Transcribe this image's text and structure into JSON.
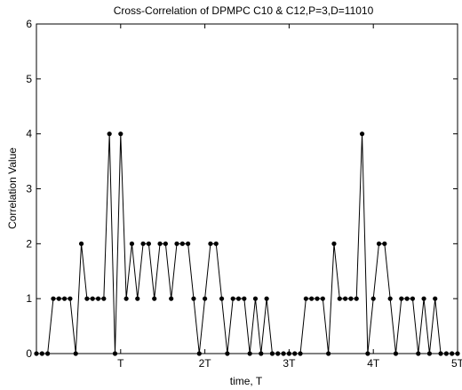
{
  "chart_data": {
    "type": "line",
    "title": "Cross-Correlation of DPMPC C10 & C12,P=3,D=11010",
    "xlabel": "time, T",
    "ylabel": "Correlation Value",
    "xlim": [
      0,
      75
    ],
    "ylim": [
      0,
      6
    ],
    "x_ticks": [
      {
        "value": 15,
        "label": "T"
      },
      {
        "value": 30,
        "label": "2T"
      },
      {
        "value": 45,
        "label": "3T"
      },
      {
        "value": 60,
        "label": "4T"
      },
      {
        "value": 75,
        "label": "5T"
      }
    ],
    "y_ticks": [
      0,
      1,
      2,
      3,
      4,
      5,
      6
    ],
    "grid": false,
    "legend": "none",
    "line_color": "#000000",
    "marker": "filled-circle",
    "series": [
      {
        "values": [
          0,
          0,
          0,
          1,
          1,
          1,
          1,
          0,
          2,
          1,
          1,
          1,
          1,
          4,
          0,
          4,
          1,
          2,
          1,
          2,
          2,
          1,
          2,
          2,
          1,
          2,
          2,
          2,
          1,
          0,
          1,
          2,
          2,
          1,
          0,
          1,
          1,
          1,
          0,
          1,
          0,
          1,
          0,
          0,
          0,
          0,
          0,
          0,
          1,
          1,
          1,
          1,
          0,
          2,
          1,
          1,
          1,
          1,
          4,
          0,
          1,
          2,
          2,
          1,
          0,
          1,
          1,
          1,
          0,
          1,
          0,
          1,
          0,
          0,
          0,
          0
        ]
      }
    ]
  }
}
